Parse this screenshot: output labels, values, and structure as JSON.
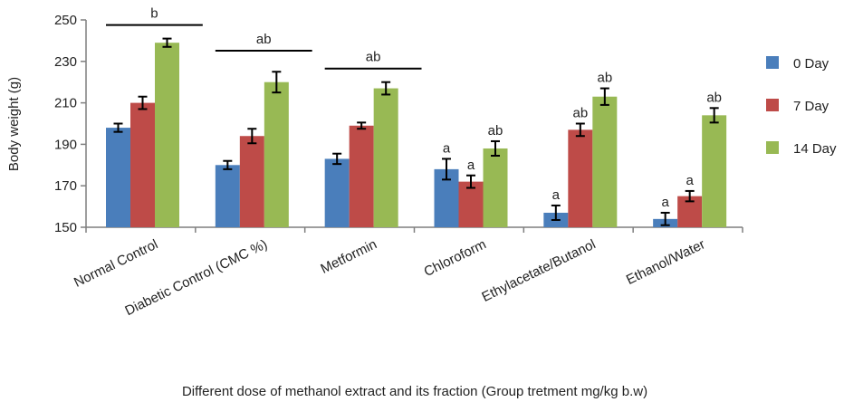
{
  "chart_data": {
    "type": "bar",
    "title": "",
    "xlabel": "Different dose of methanol extract and its fraction (Group tretment mg/kg b.w)",
    "ylabel": "Body weight (g)",
    "ylim": [
      150,
      250
    ],
    "yticks": [
      "150",
      "170",
      "190",
      "210",
      "230",
      "250"
    ],
    "grid": false,
    "legend_position": "right",
    "categories": [
      "Normal Control",
      "Diabetic Control (CMC %)",
      "Metformin",
      "Chloroform",
      "Ethylacetate/Butanol",
      "Ethanol/Water"
    ],
    "series": [
      {
        "name": "0 Day",
        "color": "#4a7ebb",
        "values": [
          198,
          180,
          183,
          178,
          157,
          154
        ],
        "errors": [
          2,
          2,
          2.5,
          5,
          3.5,
          3
        ]
      },
      {
        "name": "7 Day",
        "color": "#be4b48",
        "values": [
          210,
          194,
          199,
          172,
          197,
          165
        ],
        "errors": [
          3,
          3.5,
          1.5,
          3,
          3,
          2.5
        ]
      },
      {
        "name": "14 Day",
        "color": "#98b954",
        "values": [
          239,
          220,
          217,
          188,
          213,
          204
        ],
        "errors": [
          2,
          5,
          3,
          3.5,
          4,
          3.5
        ]
      }
    ],
    "annotations": {
      "group_labels": [
        "b",
        "ab",
        "ab",
        "",
        "",
        ""
      ],
      "bar_labels": [
        [
          "",
          "",
          ""
        ],
        [
          "",
          "",
          ""
        ],
        [
          "",
          "",
          ""
        ],
        [
          "a",
          "a",
          "ab"
        ],
        [
          "a",
          "ab",
          "ab"
        ],
        [
          "a",
          "a",
          "ab"
        ]
      ]
    }
  }
}
